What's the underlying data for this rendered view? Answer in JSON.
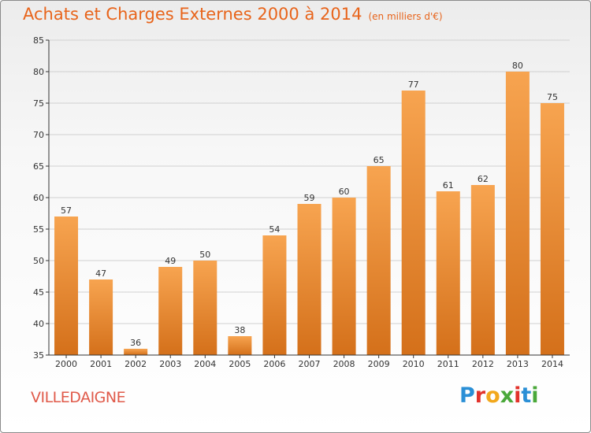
{
  "header": {
    "title": "Achats et Charges Externes 2000 à 2014",
    "unit": "(en milliers d'€)"
  },
  "footer": {
    "place": "VILLEDAIGNE",
    "logo": "Proxiti"
  },
  "colors": {
    "title": "#e8641b",
    "place": "#e05a4a",
    "bar_top": "#f7a450",
    "bar_bottom": "#d4701a",
    "grid": "#d0d0d0",
    "axis": "#333333"
  },
  "chart_data": {
    "type": "bar",
    "categories": [
      "2000",
      "2001",
      "2002",
      "2003",
      "2004",
      "2005",
      "2006",
      "2007",
      "2008",
      "2009",
      "2010",
      "2011",
      "2012",
      "2013",
      "2014"
    ],
    "values": [
      57,
      47,
      36,
      49,
      50,
      38,
      54,
      59,
      60,
      65,
      77,
      61,
      62,
      80,
      75
    ],
    "ylim": [
      35,
      85
    ],
    "yticks": [
      35,
      40,
      45,
      50,
      55,
      60,
      65,
      70,
      75,
      80,
      85
    ],
    "grid": true,
    "show_value_labels": true
  }
}
